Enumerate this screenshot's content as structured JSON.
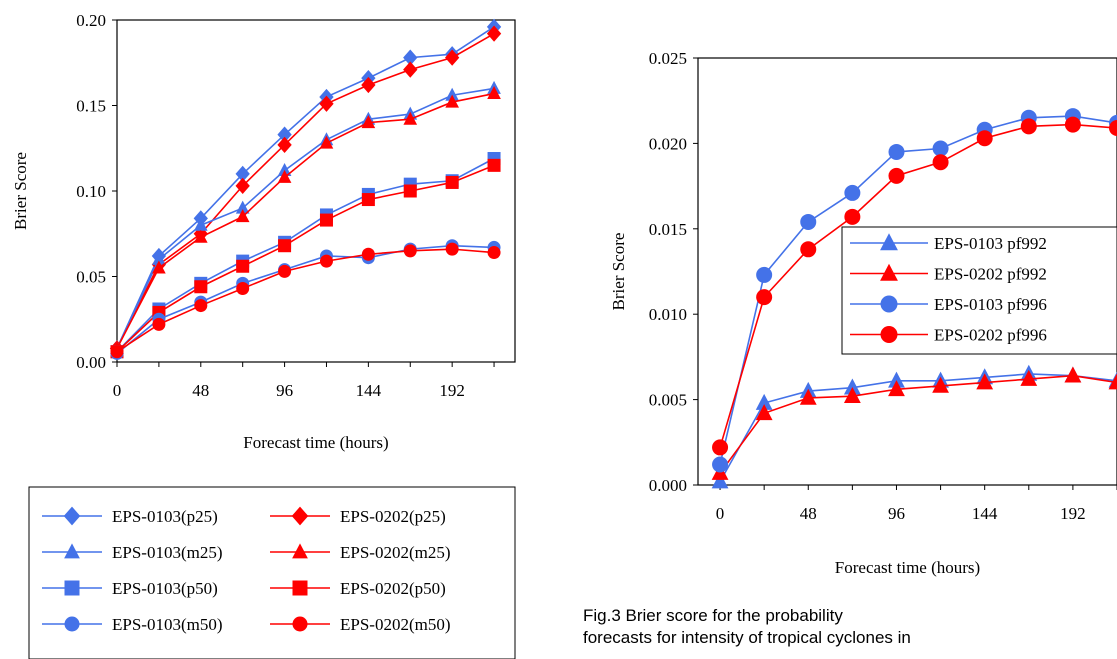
{
  "chart_data": [
    {
      "type": "line",
      "title": "",
      "xlabel": "Forecast time (hours)",
      "ylabel": "Brier Score",
      "x": [
        0,
        24,
        48,
        72,
        96,
        120,
        144,
        168,
        192,
        216
      ],
      "xlim": [
        0,
        228
      ],
      "ylim": [
        0,
        0.2
      ],
      "x_ticks": [
        0,
        48,
        96,
        144,
        192
      ],
      "y_ticks": [
        0,
        0.05,
        0.1,
        0.15,
        0.2
      ],
      "x_tick_labels": [
        "0",
        "48",
        "96",
        "144",
        "192"
      ],
      "y_tick_labels": [
        "0.00",
        "0.05",
        "0.10",
        "0.15",
        "0.20"
      ],
      "grid": false,
      "legend_position": "bottom",
      "series": [
        {
          "name": "EPS-0103(p25)",
          "color": "#4472e8",
          "marker": "diamond",
          "values": [
            0.008,
            0.062,
            0.084,
            0.11,
            0.133,
            0.155,
            0.166,
            0.178,
            0.18,
            0.196
          ]
        },
        {
          "name": "EPS-0202(p25)",
          "color": "#ff0000",
          "marker": "diamond",
          "values": [
            0.008,
            0.057,
            0.075,
            0.103,
            0.127,
            0.151,
            0.162,
            0.171,
            0.178,
            0.192
          ]
        },
        {
          "name": "EPS-0103(m25)",
          "color": "#4472e8",
          "marker": "triangle",
          "values": [
            0.008,
            0.06,
            0.08,
            0.09,
            0.112,
            0.13,
            0.142,
            0.145,
            0.156,
            0.16
          ]
        },
        {
          "name": "EPS-0202(m25)",
          "color": "#ff0000",
          "marker": "triangle",
          "values": [
            0.008,
            0.055,
            0.073,
            0.085,
            0.108,
            0.128,
            0.14,
            0.142,
            0.152,
            0.157
          ]
        },
        {
          "name": "EPS-0103(p50)",
          "color": "#4472e8",
          "marker": "square",
          "values": [
            0.006,
            0.031,
            0.046,
            0.059,
            0.07,
            0.086,
            0.098,
            0.104,
            0.106,
            0.119
          ]
        },
        {
          "name": "EPS-0202(p50)",
          "color": "#ff0000",
          "marker": "square",
          "values": [
            0.006,
            0.029,
            0.044,
            0.056,
            0.068,
            0.083,
            0.095,
            0.1,
            0.105,
            0.115
          ]
        },
        {
          "name": "EPS-0103(m50)",
          "color": "#4472e8",
          "marker": "circle",
          "values": [
            0.005,
            0.025,
            0.035,
            0.046,
            0.054,
            0.062,
            0.061,
            0.066,
            0.068,
            0.067
          ]
        },
        {
          "name": "EPS-0202(m50)",
          "color": "#ff0000",
          "marker": "circle",
          "values": [
            0.006,
            0.022,
            0.033,
            0.043,
            0.053,
            0.059,
            0.063,
            0.065,
            0.066,
            0.064
          ]
        }
      ]
    },
    {
      "type": "line",
      "title": "",
      "xlabel": "Forecast time (hours)",
      "ylabel": "Brier Score",
      "x": [
        0,
        24,
        48,
        72,
        96,
        120,
        144,
        168,
        192,
        216
      ],
      "xlim": [
        -12,
        216
      ],
      "ylim": [
        0,
        0.025
      ],
      "x_ticks": [
        0,
        48,
        96,
        144,
        192
      ],
      "y_ticks": [
        0,
        0.005,
        0.01,
        0.015,
        0.02,
        0.025
      ],
      "x_tick_labels": [
        "0",
        "48",
        "96",
        "144",
        "192"
      ],
      "y_tick_labels": [
        "0.000",
        "0.005",
        "0.010",
        "0.015",
        "0.020",
        "0.025"
      ],
      "grid": false,
      "legend_position": "center-right",
      "series": [
        {
          "name": "EPS-0103 pf992",
          "color": "#4472e8",
          "marker": "triangle",
          "values": [
            0.0002,
            0.0048,
            0.0055,
            0.0057,
            0.0061,
            0.0061,
            0.0063,
            0.0065,
            0.0064,
            0.0061
          ]
        },
        {
          "name": "EPS-0202 pf992",
          "color": "#ff0000",
          "marker": "triangle",
          "values": [
            0.0007,
            0.0042,
            0.0051,
            0.0052,
            0.0056,
            0.0058,
            0.006,
            0.0062,
            0.0064,
            0.006
          ]
        },
        {
          "name": "EPS-0103 pf996",
          "color": "#4472e8",
          "marker": "circle",
          "values": [
            0.0012,
            0.0123,
            0.0154,
            0.0171,
            0.0195,
            0.0197,
            0.0208,
            0.0215,
            0.0216,
            0.0212
          ]
        },
        {
          "name": "EPS-0202 pf996",
          "color": "#ff0000",
          "marker": "circle",
          "values": [
            0.0022,
            0.011,
            0.0138,
            0.0157,
            0.0181,
            0.0189,
            0.0203,
            0.021,
            0.0211,
            0.0209
          ]
        }
      ]
    }
  ],
  "caption": {
    "line1": "Fig.3     Brier    score    for    the    probability",
    "line2": "forecasts for intensity of tropical cyclones in"
  }
}
